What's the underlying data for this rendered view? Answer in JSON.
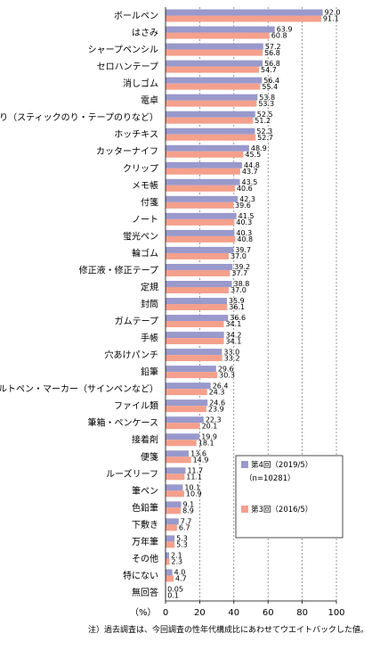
{
  "chart_data": {
    "type": "bar",
    "orientation": "horizontal",
    "categories": [
      "ボールペン",
      "はさみ",
      "シャープペンシル",
      "セロハンテープ",
      "消しゴム",
      "電卓",
      "のり（スティックのり・テープのりなど）",
      "ホッチキス",
      "カッターナイフ",
      "クリップ",
      "メモ帳",
      "付箋",
      "ノート",
      "蛍光ペン",
      "輪ゴム",
      "修正液・修正テープ",
      "定規",
      "封筒",
      "ガムテープ",
      "手帳",
      "穴あけパンチ",
      "鉛筆",
      "フェルトペン・マーカー（サインペンなど）",
      "ファイル類",
      "筆箱・ペンケース",
      "接着剤",
      "便箋",
      "ルーズリーフ",
      "筆ペン",
      "色鉛筆",
      "下敷き",
      "万年筆",
      "その他",
      "特にない",
      "無回答"
    ],
    "series": [
      {
        "name": "第4回（2019/5）",
        "values": [
          92.0,
          63.9,
          57.2,
          56.8,
          56.4,
          53.8,
          52.5,
          52.3,
          48.9,
          44.8,
          43.5,
          42.3,
          41.5,
          40.3,
          39.7,
          39.2,
          38.8,
          35.9,
          36.6,
          34.2,
          33.0,
          29.6,
          26.4,
          24.6,
          22.3,
          19.9,
          13.6,
          11.7,
          10.1,
          9.1,
          7.7,
          5.3,
          2.1,
          4.0,
          0.05
        ]
      },
      {
        "name": "第3回（2016/5）",
        "values": [
          91.1,
          60.8,
          56.8,
          54.7,
          55.4,
          53.3,
          51.2,
          52.7,
          45.5,
          43.7,
          40.6,
          39.6,
          40.3,
          40.8,
          37.0,
          37.7,
          37.0,
          36.1,
          34.1,
          34.1,
          33.2,
          30.3,
          24.3,
          23.9,
          20.1,
          18.1,
          14.9,
          11.1,
          10.9,
          8.9,
          6.7,
          5.3,
          2.3,
          4.7,
          0.1
        ]
      }
    ],
    "value_labels": [
      [
        "92.0",
        "63.9",
        "57.2",
        "56.8",
        "56.4",
        "53.8",
        "52.5",
        "52.3",
        "48.9",
        "44.8",
        "43.5",
        "42.3",
        "41.5",
        "40.3",
        "39.7",
        "39.2",
        "38.8",
        "35.9",
        "36.6",
        "34.2",
        "33.0",
        "29.6",
        "26.4",
        "24.6",
        "22.3",
        "19.9",
        "13.6",
        "11.7",
        "10.1",
        "9.1",
        "7.7",
        "5.3",
        "2.1",
        "4.0",
        "0.05"
      ],
      [
        "91.1",
        "60.8",
        "56.8",
        "54.7",
        "55.4",
        "53.3",
        "51.2",
        "52.7",
        "45.5",
        "43.7",
        "40.6",
        "39.6",
        "40.3",
        "40.8",
        "37.0",
        "37.7",
        "37.0",
        "36.1",
        "34.1",
        "34.1",
        "33.2",
        "30.3",
        "24.3",
        "23.9",
        "20.1",
        "18.1",
        "14.9",
        "11.1",
        "10.9",
        "8.9",
        "6.7",
        "5.3",
        "2.3",
        "4.7",
        "0.1"
      ]
    ],
    "xlim": [
      0,
      100
    ],
    "xticks": [
      "0",
      "20",
      "40",
      "60",
      "80",
      "100"
    ],
    "unit_label": "（%）",
    "grid": true,
    "legend": {
      "position": "right-lower",
      "entries": [
        {
          "label": "第4回（2019/5）",
          "sublabel": "（n=10281）"
        },
        {
          "label": "第3回（2016/5）",
          "sublabel": ""
        }
      ]
    },
    "colors": [
      "#9999cc",
      "#f4a08c"
    ]
  },
  "footnote": "注）過去調査は、今回調査の性年代構成比にあわせてウエイトバックした値。"
}
